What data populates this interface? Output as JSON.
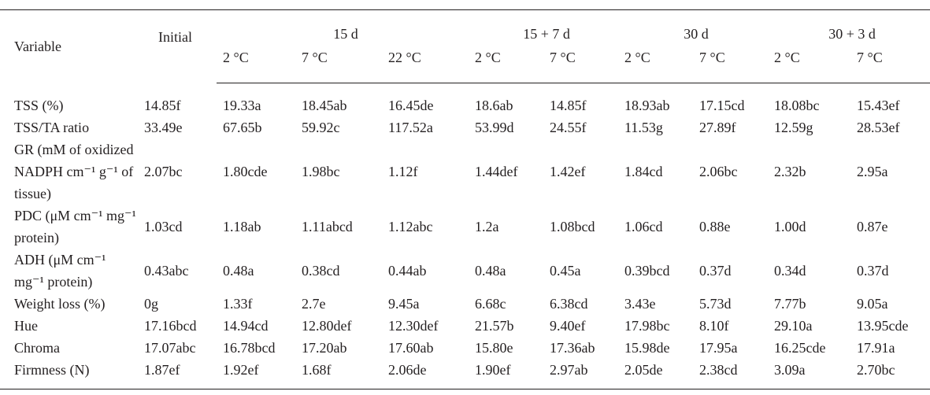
{
  "header": {
    "variable": "Variable",
    "initial": "Initial",
    "groups": [
      {
        "label": "15 d",
        "span": 3
      },
      {
        "label": "15 + 7 d",
        "span": 2
      },
      {
        "label": "30 d",
        "span": 2
      },
      {
        "label": "30 + 3 d",
        "span": 2
      }
    ],
    "subheads": [
      "2 °C",
      "7 °C",
      "22 °C",
      "2 °C",
      "7 °C",
      "2 °C",
      "7 °C",
      "2 °C",
      "7 °C"
    ]
  },
  "rows": [
    {
      "label": "TSS (%)",
      "values": [
        "14.85f",
        "19.33a",
        "18.45ab",
        "16.45de",
        "18.6ab",
        "14.85f",
        "18.93ab",
        "17.15cd",
        "18.08bc",
        "15.43ef"
      ]
    },
    {
      "label": "TSS/TA ratio",
      "values": [
        "33.49e",
        "67.65b",
        "59.92c",
        "117.52a",
        "53.99d",
        "24.55f",
        "11.53g",
        "27.89f",
        "12.59g",
        "28.53ef"
      ]
    },
    {
      "label": "GR (mM of oxidized NADPH cm⁻¹ g⁻¹ of tissue)",
      "values": [
        "2.07bc",
        "1.80cde",
        "1.98bc",
        "1.12f",
        "1.44def",
        "1.42ef",
        "1.84cd",
        "2.06bc",
        "2.32b",
        "2.95a"
      ]
    },
    {
      "label": "PDC (μM cm⁻¹ mg⁻¹ protein)",
      "values": [
        "1.03cd",
        "1.18ab",
        "1.11abcd",
        "1.12abc",
        "1.2a",
        "1.08bcd",
        "1.06cd",
        "0.88e",
        "1.00d",
        "0.87e"
      ]
    },
    {
      "label": "ADH (μM cm⁻¹ mg⁻¹ protein)",
      "values": [
        "0.43abc",
        "0.48a",
        "0.38cd",
        "0.44ab",
        "0.48a",
        "0.45a",
        "0.39bcd",
        "0.37d",
        "0.34d",
        "0.37d"
      ]
    },
    {
      "label": "Weight loss (%)",
      "values": [
        "0g",
        "1.33f",
        "2.7e",
        "9.45a",
        "6.68c",
        "6.38cd",
        "3.43e",
        "5.73d",
        "7.77b",
        "9.05a"
      ]
    },
    {
      "label": "Hue",
      "values": [
        "17.16bcd",
        "14.94cd",
        "12.80def",
        "12.30def",
        "21.57b",
        "9.40ef",
        "17.98bc",
        "8.10f",
        "29.10a",
        "13.95cde"
      ]
    },
    {
      "label": "Chroma",
      "values": [
        "17.07abc",
        "16.78bcd",
        "17.20ab",
        "17.60ab",
        "15.80e",
        "17.36ab",
        "15.98de",
        "17.95a",
        "16.25cde",
        "17.91a"
      ]
    },
    {
      "label": "Firmness (N)",
      "values": [
        "1.87ef",
        "1.92ef",
        "1.68f",
        "2.06de",
        "1.90ef",
        "2.97ab",
        "2.05de",
        "2.38cd",
        "3.09a",
        "2.70bc"
      ]
    }
  ]
}
